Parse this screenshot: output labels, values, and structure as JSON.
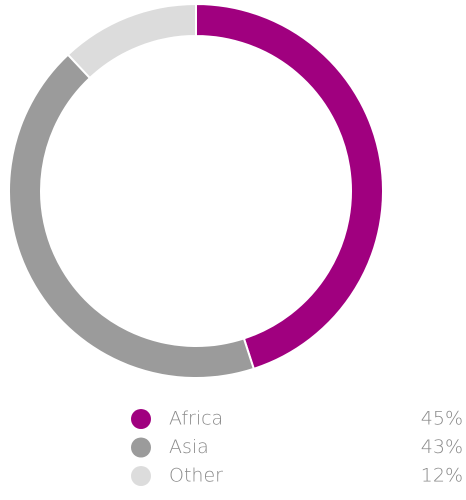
{
  "chart_data": {
    "type": "donut",
    "categories": [
      "Africa",
      "Asia",
      "Other"
    ],
    "values": [
      45,
      43,
      12
    ],
    "value_labels": [
      "45%",
      "43%",
      "12%"
    ],
    "colors": [
      "#a0007f",
      "#9b9b9b",
      "#dcdcdc"
    ]
  }
}
